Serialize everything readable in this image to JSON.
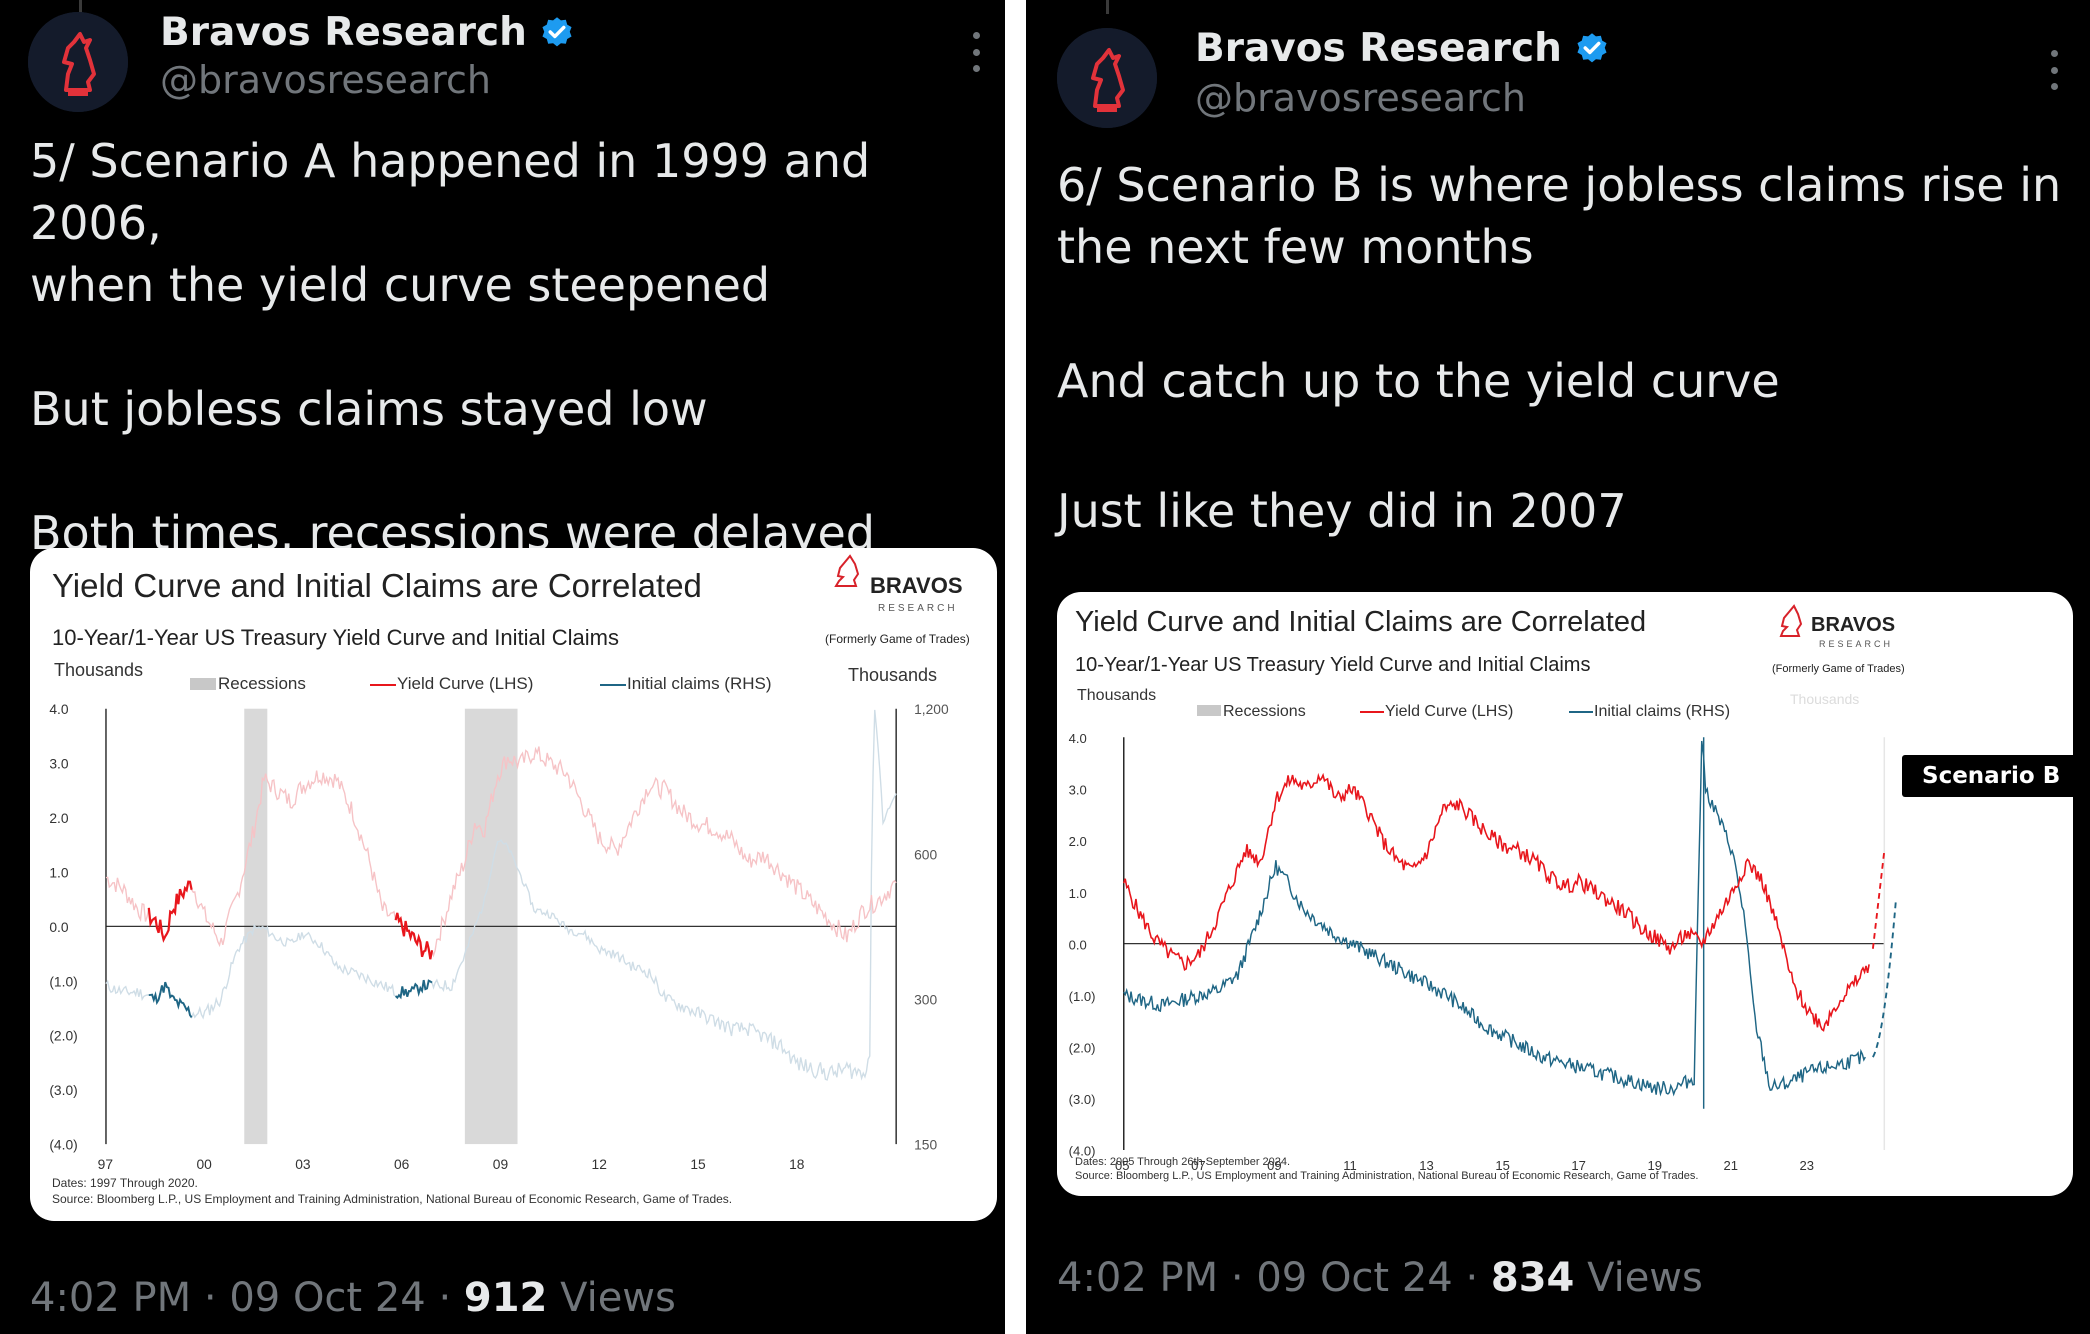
{
  "tweets": [
    {
      "author_name": "Bravos Research",
      "handle": "@bravosresearch",
      "text": [
        "5/ Scenario A happened in 1999 and 2006,",
        "when the yield curve steepened",
        "",
        "But jobless claims stayed low",
        "",
        "Both times, recessions were delayed"
      ],
      "time": "4:02 PM",
      "date": "09 Oct 24",
      "views_count": "912",
      "views_label": "Views",
      "chart": {
        "title": "Yield Curve and Initial Claims are Correlated",
        "subtitle": "10-Year/1-Year US Treasury Yield Curve and Initial Claims",
        "left_unit": "Thousands",
        "right_unit": "Thousands",
        "legend": [
          "Recessions",
          "Yield Curve (LHS)",
          "Initial claims (RHS)"
        ],
        "brand": "BRAVOS",
        "brand_sub": "RESEARCH",
        "brand_note": "(Formerly Game of Trades)",
        "dates_note": "Dates: 1997 Through 2020.",
        "source_note": "Source: Bloomberg L.P., US Employment and Training Administration, National Bureau of Economic Research, Game of Trades."
      }
    },
    {
      "author_name": "Bravos Research",
      "handle": "@bravosresearch",
      "text": [
        "6/ Scenario B is where jobless claims rise in",
        "the next few months",
        "",
        "And catch up to the yield curve",
        "",
        "Just like they did in 2007"
      ],
      "time": "4:02 PM",
      "date": "09 Oct 24",
      "views_count": "834",
      "views_label": "Views",
      "scenario_tag": "Scenario B",
      "chart": {
        "title": "Yield Curve and Initial Claims are Correlated",
        "subtitle": "10-Year/1-Year US Treasury Yield Curve and Initial Claims",
        "left_unit": "Thousands",
        "right_unit": "Thousands",
        "legend": [
          "Recessions",
          "Yield Curve (LHS)",
          "Initial claims (RHS)"
        ],
        "brand": "BRAVOS",
        "brand_sub": "RESEARCH",
        "brand_note": "(Formerly Game of Trades)",
        "dates_note": "Dates: 2005 Through 26th September 2024.",
        "source_note": "Source: Bloomberg L.P., US Employment and Training Administration, National Bureau of Economic Research, Game of Trades."
      }
    }
  ],
  "chart_data": [
    {
      "type": "line",
      "title": "Yield Curve and Initial Claims are Correlated",
      "subtitle": "10-Year/1-Year US Treasury Yield Curve and Initial Claims",
      "x_ticks": [
        "97",
        "00",
        "03",
        "06",
        "09",
        "12",
        "15",
        "18"
      ],
      "y_left_ticks": [
        "4.0",
        "3.0",
        "2.0",
        "1.0",
        "0.0",
        "(1.0)",
        "(2.0)",
        "(3.0)",
        "(4.0)"
      ],
      "y_right_ticks": [
        "1,200",
        "600",
        "300",
        "150"
      ],
      "ylim_left": [
        -4,
        4
      ],
      "ylim_right": [
        150,
        1200
      ],
      "x_range": [
        1997,
        2021
      ],
      "right_scale": "log",
      "recessions": [
        [
          2001.2,
          2001.9
        ],
        [
          2007.9,
          2009.5
        ]
      ],
      "series": [
        {
          "name": "Yield Curve (LHS)",
          "color": "#e8161c",
          "faded_color": "#f6c3c6",
          "x": [
            1997,
            1997.5,
            1998,
            1998.5,
            1998.8,
            1999,
            1999.3,
            1999.6,
            2000,
            2000.5,
            2001,
            2001.5,
            2001.8,
            2002.2,
            2002.6,
            2003,
            2003.5,
            2004,
            2004.5,
            2005,
            2005.4,
            2005.8,
            2006,
            2006.3,
            2006.6,
            2006.9,
            2007.2,
            2007.5,
            2007.9,
            2008.2,
            2008.5,
            2008.9,
            2009.2,
            2009.6,
            2010,
            2010.5,
            2011,
            2011.5,
            2012,
            2012.5,
            2013,
            2013.5,
            2014,
            2014.5,
            2015,
            2015.5,
            2016,
            2016.5,
            2017,
            2017.5,
            2018,
            2018.5,
            2019,
            2019.5,
            2020,
            2020.5,
            2021
          ],
          "y": [
            0.9,
            0.7,
            0.3,
            0.1,
            -0.2,
            0.3,
            0.6,
            0.8,
            0.2,
            -0.3,
            0.6,
            1.8,
            2.7,
            2.5,
            2.3,
            2.6,
            2.8,
            2.7,
            2.1,
            1.2,
            0.3,
            0.1,
            0.0,
            -0.2,
            -0.4,
            -0.5,
            0.0,
            0.6,
            1.2,
            1.9,
            1.8,
            2.8,
            3.1,
            3.0,
            3.2,
            3.0,
            2.8,
            2.2,
            1.6,
            1.4,
            2.0,
            2.6,
            2.5,
            2.1,
            1.9,
            1.8,
            1.6,
            1.2,
            1.3,
            1.0,
            0.7,
            0.4,
            0.1,
            -0.2,
            0.3,
            0.5,
            0.8
          ]
        },
        {
          "name": "Initial claims (RHS)",
          "color": "#1f6685",
          "faded_color": "#cfdde6",
          "x": [
            1997,
            1997.5,
            1998,
            1998.5,
            1998.8,
            1999,
            1999.3,
            1999.6,
            2000,
            2000.5,
            2001,
            2001.5,
            2001.8,
            2002.2,
            2002.6,
            2003,
            2003.5,
            2004,
            2004.5,
            2005,
            2005.4,
            2005.8,
            2006,
            2006.3,
            2006.6,
            2006.9,
            2007.2,
            2007.5,
            2007.9,
            2008.2,
            2008.5,
            2008.9,
            2009.2,
            2009.6,
            2010,
            2010.5,
            2011,
            2011.5,
            2012,
            2012.5,
            2013,
            2013.5,
            2014,
            2014.5,
            2015,
            2015.5,
            2016,
            2016.5,
            2017,
            2017.5,
            2018,
            2018.5,
            2019,
            2019.5,
            2020,
            2020.2,
            2020.35,
            2020.6,
            2021
          ],
          "y": [
            320,
            310,
            310,
            300,
            320,
            300,
            290,
            280,
            280,
            300,
            380,
            420,
            420,
            400,
            390,
            410,
            390,
            350,
            340,
            330,
            320,
            310,
            310,
            310,
            320,
            320,
            320,
            320,
            370,
            420,
            480,
            640,
            620,
            540,
            460,
            450,
            420,
            410,
            380,
            370,
            350,
            340,
            300,
            290,
            280,
            270,
            260,
            260,
            250,
            240,
            220,
            215,
            210,
            215,
            210,
            230,
            1200,
            700,
            800
          ]
        }
      ],
      "highlight_ranges": [
        [
          1998.3,
          1999.6
        ],
        [
          2005.8,
          2006.9
        ]
      ]
    },
    {
      "type": "line",
      "title": "Yield Curve and Initial Claims are Correlated",
      "subtitle": "10-Year/1-Year US Treasury Yield Curve and Initial Claims",
      "x_ticks": [
        "05",
        "07",
        "09",
        "11",
        "13",
        "15",
        "17",
        "19",
        "21",
        "23"
      ],
      "y_left_ticks": [
        "4.0",
        "3.0",
        "2.0",
        "1.0",
        "0.0",
        "(1.0)",
        "(2.0)",
        "(3.0)",
        "(4.0)"
      ],
      "ylim_left": [
        -4,
        4
      ],
      "x_range": [
        2005,
        2025
      ],
      "series": [
        {
          "name": "Yield Curve (LHS)",
          "color": "#e8161c",
          "x": [
            2005,
            2005.4,
            2005.8,
            2006.2,
            2006.6,
            2007,
            2007.4,
            2007.8,
            2008.2,
            2008.6,
            2009,
            2009.4,
            2009.8,
            2010.2,
            2010.6,
            2011,
            2011.4,
            2011.8,
            2012.2,
            2012.6,
            2013,
            2013.4,
            2013.8,
            2014.2,
            2014.6,
            2015,
            2015.4,
            2015.8,
            2016.2,
            2016.6,
            2017,
            2017.4,
            2017.8,
            2018.2,
            2018.6,
            2019,
            2019.4,
            2019.8,
            2020.2,
            2020.6,
            2021,
            2021.4,
            2021.8,
            2022.2,
            2022.6,
            2023,
            2023.4,
            2023.8,
            2024.2,
            2024.6
          ],
          "y": [
            1.2,
            0.6,
            0.1,
            -0.2,
            -0.4,
            -0.2,
            0.4,
            1.1,
            1.8,
            1.6,
            2.8,
            3.2,
            3.0,
            3.3,
            2.8,
            3.0,
            2.6,
            2.0,
            1.6,
            1.4,
            1.8,
            2.6,
            2.7,
            2.4,
            2.1,
            1.9,
            1.8,
            1.6,
            1.3,
            1.1,
            1.2,
            1.0,
            0.8,
            0.6,
            0.3,
            0.1,
            -0.1,
            0.2,
            0.0,
            0.5,
            1.0,
            1.6,
            1.2,
            0.3,
            -0.8,
            -1.3,
            -1.6,
            -1.1,
            -0.8,
            -0.4
          ]
        },
        {
          "name": "Initial claims (RHS)",
          "color": "#1f6685",
          "x": [
            2005,
            2005.5,
            2006,
            2006.5,
            2007,
            2007.5,
            2008,
            2008.5,
            2009,
            2009.3,
            2009.7,
            2010,
            2010.5,
            2011,
            2011.5,
            2012,
            2012.5,
            2013,
            2013.5,
            2014,
            2014.5,
            2015,
            2015.5,
            2016,
            2016.5,
            2017,
            2017.5,
            2018,
            2018.5,
            2019,
            2019.5,
            2020,
            2020.2,
            2020.3,
            2020.6,
            2021,
            2021.3,
            2021.6,
            2022,
            2022.5,
            2023,
            2023.5,
            2024,
            2024.5
          ],
          "y": [
            -1.0,
            -1.1,
            -1.2,
            -1.1,
            -1.0,
            -0.9,
            -0.6,
            0.4,
            1.5,
            1.2,
            0.7,
            0.5,
            0.2,
            0.0,
            -0.2,
            -0.4,
            -0.6,
            -0.8,
            -1.0,
            -1.3,
            -1.6,
            -1.8,
            -2.0,
            -2.2,
            -2.3,
            -2.4,
            -2.5,
            -2.6,
            -2.7,
            -2.8,
            -2.8,
            -2.6,
            4.0,
            3.0,
            2.5,
            1.8,
            0.6,
            -1.5,
            -2.8,
            -2.7,
            -2.5,
            -2.4,
            -2.3,
            -2.2
          ]
        }
      ],
      "projection": {
        "yield_curve": {
          "x": [
            2024.7,
            2025.0
          ],
          "y": [
            -0.1,
            1.8
          ]
        },
        "claims": {
          "x": [
            2024.7,
            2025.3
          ],
          "y": [
            -2.2,
            0.8
          ]
        }
      },
      "vertical_marker_x": 2020.25
    }
  ]
}
